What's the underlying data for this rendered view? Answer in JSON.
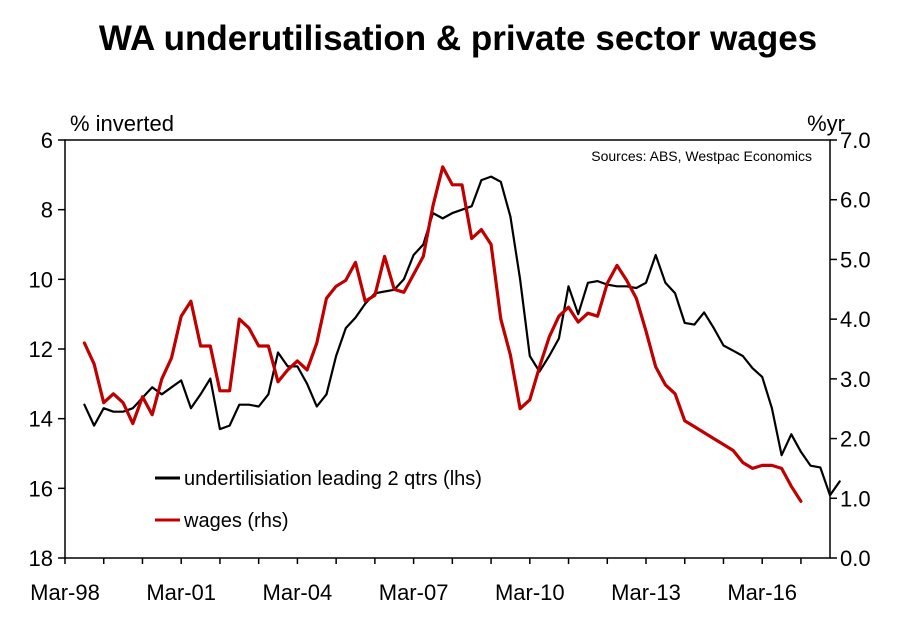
{
  "chart_data": {
    "type": "line",
    "title": "WA underutilisation & private sector wages",
    "left_unit": "% inverted",
    "right_unit": "%yr",
    "source_note": "Sources: ABS, Westpac Economics",
    "x_tick_labels": [
      "Mar-98",
      "Mar-01",
      "Mar-04",
      "Mar-07",
      "Mar-10",
      "Mar-13",
      "Mar-16"
    ],
    "x_tick_positions": [
      1998.0,
      2001.0,
      2004.0,
      2007.0,
      2010.0,
      2013.0,
      2016.0
    ],
    "xlim": [
      1998.0,
      2017.75
    ],
    "left_axis": {
      "ylim": [
        6,
        18
      ],
      "inverted": true,
      "ticks": [
        "6",
        "8",
        "10",
        "12",
        "14",
        "16",
        "18"
      ]
    },
    "right_axis": {
      "ylim": [
        0.0,
        7.0
      ],
      "ticks": [
        "0.0",
        "1.0",
        "2.0",
        "3.0",
        "4.0",
        "5.0",
        "6.0",
        "7.0"
      ]
    },
    "series": [
      {
        "name": "undertilisiation leading 2 qtrs (lhs)",
        "axis": "left",
        "color": "#000000",
        "points": [
          [
            1998.5,
            13.6
          ],
          [
            1998.75,
            14.2
          ],
          [
            1999.0,
            13.7
          ],
          [
            1999.25,
            13.8
          ],
          [
            1999.5,
            13.8
          ],
          [
            1999.75,
            13.7
          ],
          [
            2000.0,
            13.4
          ],
          [
            2000.25,
            13.1
          ],
          [
            2000.5,
            13.3
          ],
          [
            2000.75,
            13.1
          ],
          [
            2001.0,
            12.9
          ],
          [
            2001.25,
            13.7
          ],
          [
            2001.5,
            13.3
          ],
          [
            2001.75,
            12.85
          ],
          [
            2002.0,
            14.3
          ],
          [
            2002.25,
            14.2
          ],
          [
            2002.5,
            13.6
          ],
          [
            2002.75,
            13.6
          ],
          [
            2003.0,
            13.65
          ],
          [
            2003.25,
            13.3
          ],
          [
            2003.5,
            12.1
          ],
          [
            2003.75,
            12.5
          ],
          [
            2004.0,
            12.5
          ],
          [
            2004.25,
            13.0
          ],
          [
            2004.5,
            13.65
          ],
          [
            2004.75,
            13.3
          ],
          [
            2005.0,
            12.2
          ],
          [
            2005.25,
            11.4
          ],
          [
            2005.5,
            11.1
          ],
          [
            2005.75,
            10.7
          ],
          [
            2006.0,
            10.4
          ],
          [
            2006.25,
            10.35
          ],
          [
            2006.5,
            10.3
          ],
          [
            2006.75,
            10.0
          ],
          [
            2007.0,
            9.3
          ],
          [
            2007.25,
            9.0
          ],
          [
            2007.5,
            8.1
          ],
          [
            2007.75,
            8.25
          ],
          [
            2008.0,
            8.1
          ],
          [
            2008.25,
            8.0
          ],
          [
            2008.5,
            7.9
          ],
          [
            2008.75,
            7.15
          ],
          [
            2009.0,
            7.05
          ],
          [
            2009.25,
            7.2
          ],
          [
            2009.5,
            8.2
          ],
          [
            2009.75,
            10.0
          ],
          [
            2010.0,
            12.2
          ],
          [
            2010.25,
            12.65
          ],
          [
            2010.5,
            12.2
          ],
          [
            2010.75,
            11.7
          ],
          [
            2011.0,
            10.2
          ],
          [
            2011.25,
            11.0
          ],
          [
            2011.5,
            10.1
          ],
          [
            2011.75,
            10.05
          ],
          [
            2012.0,
            10.15
          ],
          [
            2012.25,
            10.2
          ],
          [
            2012.5,
            10.2
          ],
          [
            2012.75,
            10.25
          ],
          [
            2013.0,
            10.1
          ],
          [
            2013.25,
            9.3
          ],
          [
            2013.5,
            10.1
          ],
          [
            2013.75,
            10.4
          ],
          [
            2014.0,
            11.25
          ],
          [
            2014.25,
            11.3
          ],
          [
            2014.5,
            10.95
          ],
          [
            2014.75,
            11.4
          ],
          [
            2015.0,
            11.9
          ],
          [
            2015.25,
            12.05
          ],
          [
            2015.5,
            12.2
          ],
          [
            2015.75,
            12.55
          ],
          [
            2016.0,
            12.8
          ],
          [
            2016.25,
            13.7
          ],
          [
            2016.5,
            15.05
          ],
          [
            2016.75,
            14.45
          ],
          [
            2017.0,
            14.95
          ],
          [
            2017.25,
            15.35
          ],
          [
            2017.5,
            15.4
          ],
          [
            2017.75,
            16.2
          ],
          [
            2018.0,
            15.8
          ]
        ]
      },
      {
        "name": "wages (rhs)",
        "axis": "right",
        "color": "#c00000",
        "points": [
          [
            1998.5,
            3.6
          ],
          [
            1998.75,
            3.25
          ],
          [
            1999.0,
            2.6
          ],
          [
            1999.25,
            2.75
          ],
          [
            1999.5,
            2.6
          ],
          [
            1999.75,
            2.25
          ],
          [
            2000.0,
            2.7
          ],
          [
            2000.25,
            2.4
          ],
          [
            2000.5,
            3.0
          ],
          [
            2000.75,
            3.35
          ],
          [
            2001.0,
            4.05
          ],
          [
            2001.25,
            4.3
          ],
          [
            2001.5,
            3.55
          ],
          [
            2001.75,
            3.55
          ],
          [
            2002.0,
            2.8
          ],
          [
            2002.25,
            2.8
          ],
          [
            2002.5,
            4.0
          ],
          [
            2002.75,
            3.85
          ],
          [
            2003.0,
            3.55
          ],
          [
            2003.25,
            3.55
          ],
          [
            2003.5,
            2.95
          ],
          [
            2003.75,
            3.15
          ],
          [
            2004.0,
            3.3
          ],
          [
            2004.25,
            3.15
          ],
          [
            2004.5,
            3.6
          ],
          [
            2004.75,
            4.35
          ],
          [
            2005.0,
            4.55
          ],
          [
            2005.25,
            4.65
          ],
          [
            2005.5,
            4.95
          ],
          [
            2005.75,
            4.3
          ],
          [
            2006.0,
            4.4
          ],
          [
            2006.25,
            5.05
          ],
          [
            2006.5,
            4.5
          ],
          [
            2006.75,
            4.45
          ],
          [
            2007.0,
            4.75
          ],
          [
            2007.25,
            5.05
          ],
          [
            2007.5,
            5.9
          ],
          [
            2007.75,
            6.55
          ],
          [
            2008.0,
            6.25
          ],
          [
            2008.25,
            6.25
          ],
          [
            2008.5,
            5.35
          ],
          [
            2008.75,
            5.5
          ],
          [
            2009.0,
            5.25
          ],
          [
            2009.25,
            4.0
          ],
          [
            2009.5,
            3.4
          ],
          [
            2009.75,
            2.5
          ],
          [
            2010.0,
            2.65
          ],
          [
            2010.25,
            3.2
          ],
          [
            2010.5,
            3.7
          ],
          [
            2010.75,
            4.05
          ],
          [
            2011.0,
            4.2
          ],
          [
            2011.25,
            3.95
          ],
          [
            2011.5,
            4.1
          ],
          [
            2011.75,
            4.05
          ],
          [
            2012.0,
            4.6
          ],
          [
            2012.25,
            4.9
          ],
          [
            2012.5,
            4.65
          ],
          [
            2012.75,
            4.35
          ],
          [
            2013.0,
            3.8
          ],
          [
            2013.25,
            3.2
          ],
          [
            2013.5,
            2.9
          ],
          [
            2013.75,
            2.75
          ],
          [
            2014.0,
            2.3
          ],
          [
            2014.25,
            2.2
          ],
          [
            2014.5,
            2.1
          ],
          [
            2014.75,
            2.0
          ],
          [
            2015.0,
            1.9
          ],
          [
            2015.25,
            1.8
          ],
          [
            2015.5,
            1.6
          ],
          [
            2015.75,
            1.5
          ],
          [
            2016.0,
            1.55
          ],
          [
            2016.25,
            1.55
          ],
          [
            2016.5,
            1.5
          ],
          [
            2016.75,
            1.2
          ],
          [
            2017.0,
            0.95
          ]
        ]
      }
    ],
    "legend_position": "lower-left"
  }
}
